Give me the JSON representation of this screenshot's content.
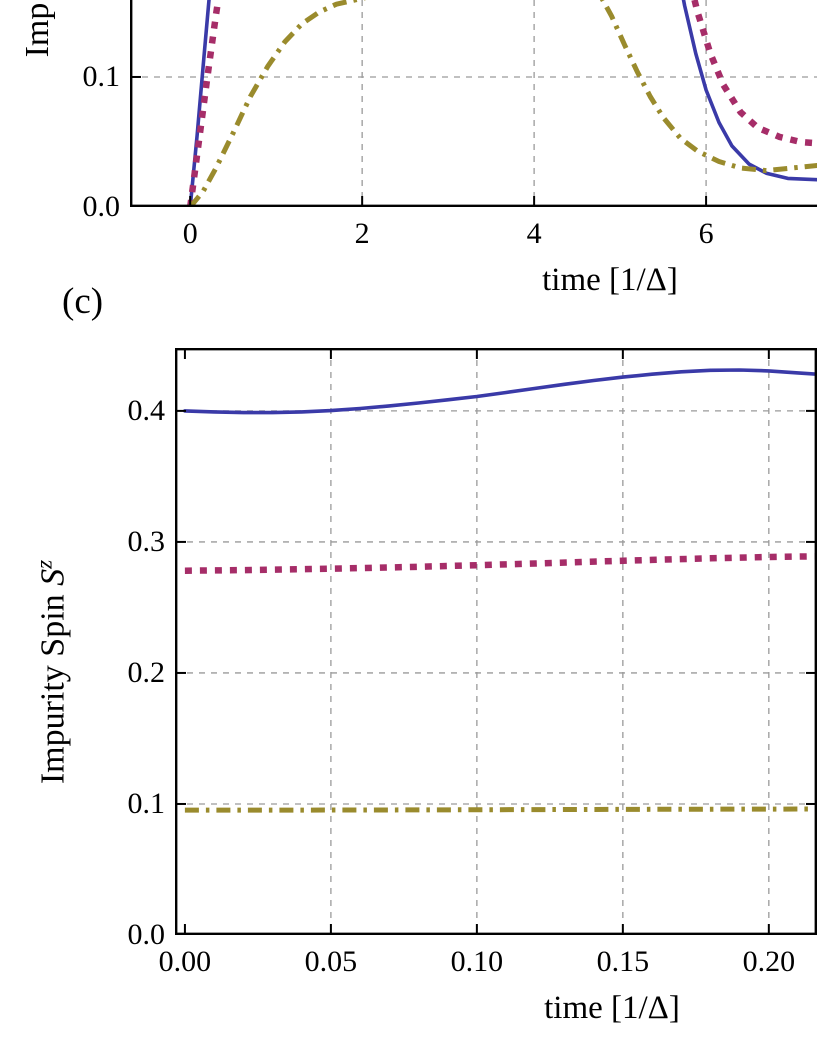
{
  "panel_label": "(c)",
  "colors": {
    "blue": "#3a3aa8",
    "magenta": "#a62d68",
    "olive": "#9a8b2d",
    "grid": "#9a9a9a",
    "frame": "#000000"
  },
  "chart_data": [
    {
      "id": "top",
      "type": "line",
      "title": "",
      "xlabel": "time [1/Δ]",
      "ylabel": "Imp",
      "grid": true,
      "legend": "none",
      "xlim": [
        -0.7,
        7.29
      ],
      "ylim": [
        0,
        0.1592
      ],
      "xticks": [
        {
          "value": 0,
          "label": "0"
        },
        {
          "value": 2,
          "label": "2"
        },
        {
          "value": 4,
          "label": "4"
        },
        {
          "value": 6,
          "label": "6"
        }
      ],
      "yticks": [
        {
          "value": 0,
          "label": "0.0"
        },
        {
          "value": 0.1,
          "label": "0.1"
        }
      ],
      "series": [
        {
          "name": "solid-blue",
          "color": "blue",
          "style": "solid",
          "points": [
            [
              0,
              0
            ],
            [
              0.08,
              0.055
            ],
            [
              0.16,
              0.115
            ],
            [
              0.24,
              0.175
            ],
            [
              0.32,
              0.24
            ],
            [
              0.45,
              0.3
            ],
            [
              5.35,
              0.3
            ],
            [
              5.5,
              0.25
            ],
            [
              5.62,
              0.2
            ],
            [
              5.75,
              0.155
            ],
            [
              5.88,
              0.118
            ],
            [
              6.0,
              0.09
            ],
            [
              6.15,
              0.065
            ],
            [
              6.3,
              0.047
            ],
            [
              6.5,
              0.033
            ],
            [
              6.7,
              0.026
            ],
            [
              6.95,
              0.022
            ],
            [
              7.3,
              0.021
            ]
          ]
        },
        {
          "name": "dashed-magenta",
          "color": "magenta",
          "style": "dashed",
          "points": [
            [
              0,
              0
            ],
            [
              0.1,
              0.05
            ],
            [
              0.2,
              0.1
            ],
            [
              0.3,
              0.148
            ],
            [
              0.42,
              0.2
            ],
            [
              0.55,
              0.26
            ],
            [
              0.7,
              0.3
            ],
            [
              5.45,
              0.3
            ],
            [
              5.6,
              0.24
            ],
            [
              5.75,
              0.19
            ],
            [
              5.9,
              0.15
            ],
            [
              6.05,
              0.118
            ],
            [
              6.2,
              0.094
            ],
            [
              6.4,
              0.073
            ],
            [
              6.6,
              0.061
            ],
            [
              6.85,
              0.054
            ],
            [
              7.1,
              0.05
            ],
            [
              7.3,
              0.049
            ]
          ]
        },
        {
          "name": "dashdot-olive",
          "color": "olive",
          "style": "dashdot",
          "points": [
            [
              0,
              0
            ],
            [
              0.15,
              0.012
            ],
            [
              0.3,
              0.03
            ],
            [
              0.5,
              0.057
            ],
            [
              0.7,
              0.085
            ],
            [
              0.9,
              0.108
            ],
            [
              1.1,
              0.127
            ],
            [
              1.3,
              0.141
            ],
            [
              1.5,
              0.15
            ],
            [
              1.7,
              0.156
            ],
            [
              1.9,
              0.159
            ],
            [
              2.1,
              0.162
            ],
            [
              2.3,
              0.17
            ],
            [
              2.5,
              0.185
            ],
            [
              2.8,
              0.21
            ],
            [
              4.4,
              0.21
            ],
            [
              4.6,
              0.185
            ],
            [
              4.75,
              0.165
            ],
            [
              4.9,
              0.147
            ],
            [
              5.05,
              0.125
            ],
            [
              5.2,
              0.104
            ],
            [
              5.35,
              0.085
            ],
            [
              5.5,
              0.069
            ],
            [
              5.7,
              0.053
            ],
            [
              5.9,
              0.043
            ],
            [
              6.15,
              0.035
            ],
            [
              6.4,
              0.03
            ],
            [
              6.7,
              0.028
            ],
            [
              7.0,
              0.03
            ],
            [
              7.3,
              0.032
            ]
          ]
        }
      ]
    },
    {
      "id": "bottom",
      "type": "line",
      "title": "",
      "xlabel": "time [1/Δ]",
      "ylabel_prefix": "Impurity Spin ",
      "ylabel_var": "S",
      "ylabel_sup": "z",
      "grid": true,
      "legend": "none",
      "xlim": [
        -0.0034,
        0.2165
      ],
      "ylim": [
        0,
        0.448
      ],
      "xticks": [
        {
          "value": 0,
          "label": "0.00"
        },
        {
          "value": 0.05,
          "label": "0.05"
        },
        {
          "value": 0.1,
          "label": "0.10"
        },
        {
          "value": 0.15,
          "label": "0.15"
        },
        {
          "value": 0.2,
          "label": "0.20"
        }
      ],
      "yticks": [
        {
          "value": 0,
          "label": "0.0"
        },
        {
          "value": 0.1,
          "label": "0.1"
        },
        {
          "value": 0.2,
          "label": "0.2"
        },
        {
          "value": 0.3,
          "label": "0.3"
        },
        {
          "value": 0.4,
          "label": "0.4"
        }
      ],
      "series": [
        {
          "name": "solid-blue",
          "color": "blue",
          "style": "solid",
          "points": [
            [
              0,
              0.4
            ],
            [
              0.01,
              0.3992
            ],
            [
              0.02,
              0.3987
            ],
            [
              0.03,
              0.3987
            ],
            [
              0.04,
              0.3992
            ],
            [
              0.05,
              0.4002
            ],
            [
              0.06,
              0.4018
            ],
            [
              0.07,
              0.4038
            ],
            [
              0.08,
              0.406
            ],
            [
              0.09,
              0.4085
            ],
            [
              0.1,
              0.411
            ],
            [
              0.11,
              0.414
            ],
            [
              0.12,
              0.4172
            ],
            [
              0.13,
              0.4203
            ],
            [
              0.14,
              0.4232
            ],
            [
              0.15,
              0.4258
            ],
            [
              0.16,
              0.428
            ],
            [
              0.17,
              0.4298
            ],
            [
              0.18,
              0.431
            ],
            [
              0.19,
              0.4312
            ],
            [
              0.2,
              0.4305
            ],
            [
              0.21,
              0.429
            ],
            [
              0.2165,
              0.428
            ]
          ]
        },
        {
          "name": "dashed-magenta",
          "color": "magenta",
          "style": "dashed",
          "points": [
            [
              0,
              0.278
            ],
            [
              0.02,
              0.2785
            ],
            [
              0.04,
              0.2792
            ],
            [
              0.06,
              0.28
            ],
            [
              0.08,
              0.281
            ],
            [
              0.1,
              0.2822
            ],
            [
              0.12,
              0.2835
            ],
            [
              0.14,
              0.285
            ],
            [
              0.16,
              0.2863
            ],
            [
              0.18,
              0.2875
            ],
            [
              0.2,
              0.2885
            ],
            [
              0.2165,
              0.289
            ]
          ]
        },
        {
          "name": "dashdot-olive",
          "color": "olive",
          "style": "dashdot",
          "points": [
            [
              0,
              0.0953
            ],
            [
              0.04,
              0.0953
            ],
            [
              0.08,
              0.0955
            ],
            [
              0.12,
              0.0957
            ],
            [
              0.16,
              0.0959
            ],
            [
              0.2,
              0.0961
            ],
            [
              0.2165,
              0.0962
            ]
          ]
        }
      ]
    }
  ]
}
